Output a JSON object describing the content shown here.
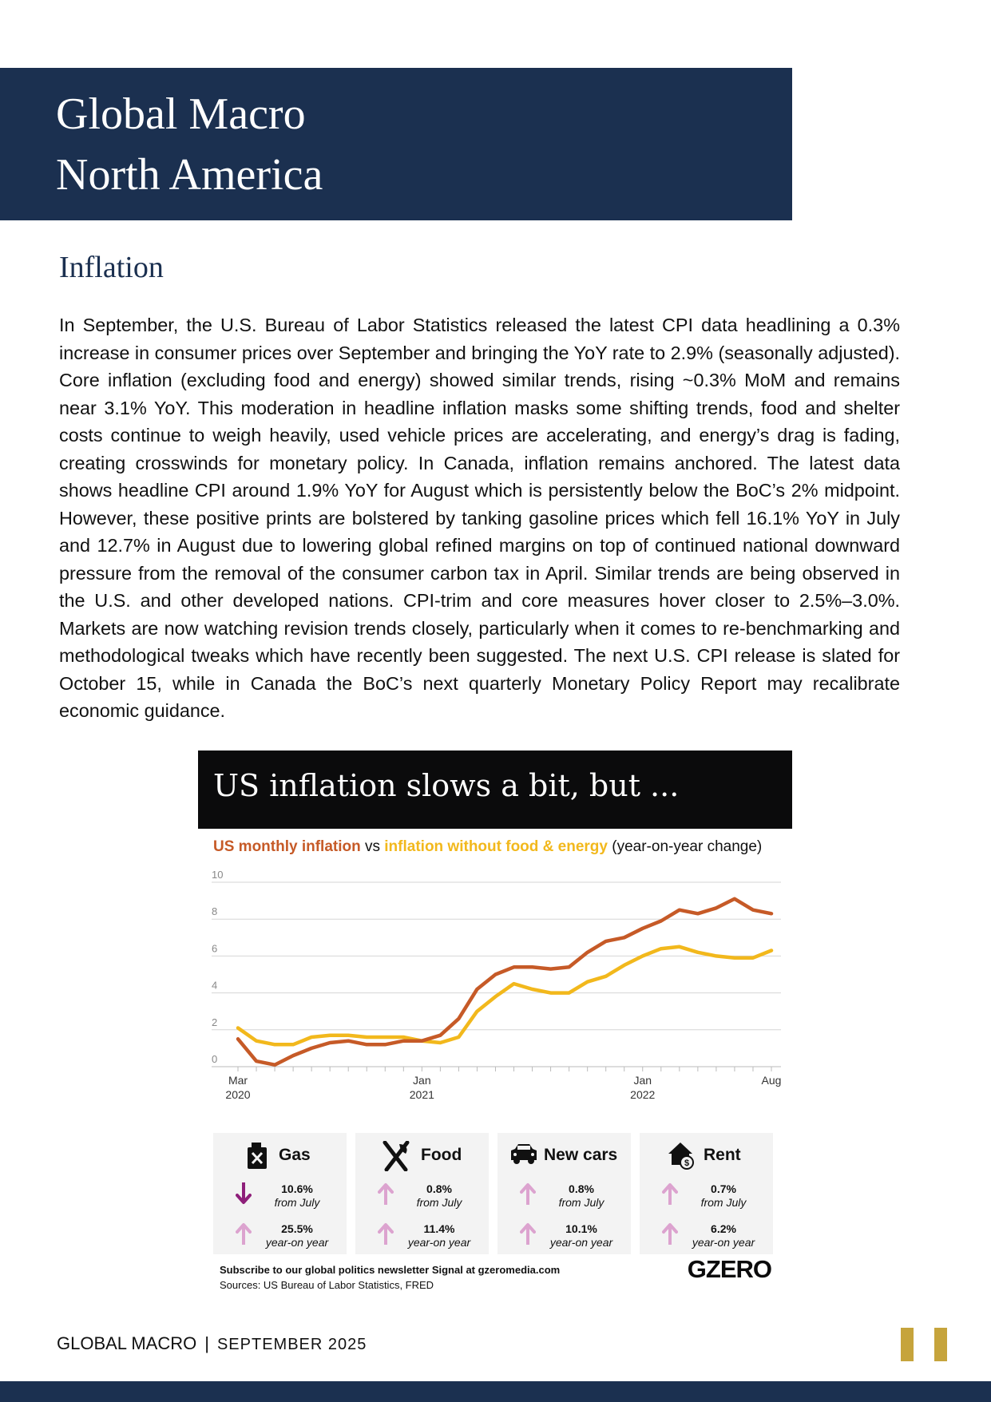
{
  "header": {
    "title_line1": "Global Macro",
    "title_line2": "North America"
  },
  "section": {
    "title": "Inflation"
  },
  "body": {
    "paragraph": "In September, the U.S. Bureau of Labor Statistics released the latest CPI data headlining a 0.3% increase in consumer prices over September and bringing the YoY rate to 2.9% (seasonally adjusted). Core inflation (excluding food and energy) showed similar trends, rising ~0.3% MoM and remains near 3.1% YoY. This moderation in headline inflation masks some shifting trends, food and shelter costs continue to weigh heavily, used vehicle prices are accelerating, and energy’s drag is fading, creating crosswinds for monetary policy. In Canada, inflation remains anchored. The latest data shows headline CPI around 1.9% YoY for August which is persistently below the BoC’s 2% midpoint. However, these positive prints are bolstered by tanking gasoline prices which fell 16.1% YoY in July and 12.7% in August due to lowering global refined margins on top of continued national downward pressure from the removal of the consumer carbon tax in April. Similar trends are being observed in the U.S. and other developed nations. CPI-trim and core measures hover closer to 2.5%–3.0%. Markets are now watching revision trends closely, particularly when it comes to re-benchmarking and methodological tweaks which have recently been suggested. The next U.S. CPI release is slated for October 15, while in Canada the BoC’s next quarterly Monetary Policy Report may recalibrate economic guidance."
  },
  "infographic": {
    "title": "US inflation slows a bit, but ...",
    "subtitle_part1": "US monthly inflation",
    "subtitle_part2": " vs ",
    "subtitle_part3": "inflation without food & energy",
    "subtitle_part4": " (year-on-year change)",
    "cards": [
      {
        "name": "Gas",
        "icon": "gas-can-icon",
        "monthly": {
          "value": "10.6%",
          "label": "from July",
          "direction": "down"
        },
        "yearly": {
          "value": "25.5%",
          "label": "year-on year",
          "direction": "up"
        }
      },
      {
        "name": "Food",
        "icon": "fork-knife-icon",
        "monthly": {
          "value": "0.8%",
          "label": "from July",
          "direction": "up"
        },
        "yearly": {
          "value": "11.4%",
          "label": "year-on year",
          "direction": "up"
        }
      },
      {
        "name": "New cars",
        "icon": "car-icon",
        "monthly": {
          "value": "0.8%",
          "label": "from July",
          "direction": "up"
        },
        "yearly": {
          "value": "10.1%",
          "label": "year-on year",
          "direction": "up"
        }
      },
      {
        "name": "Rent",
        "icon": "house-dollar-icon",
        "monthly": {
          "value": "0.7%",
          "label": "from July",
          "direction": "up"
        },
        "yearly": {
          "value": "6.2%",
          "label": "year-on year",
          "direction": "up"
        }
      }
    ],
    "footer_subscribe": "Subscribe to our global politics newsletter Signal at gzeromedia.com",
    "footer_sources": "Sources: US Bureau of Labor Statistics, FRED",
    "brand": "GZERO",
    "colors": {
      "headline": "#c65a27",
      "core": "#f2b81c",
      "down_arrow": "#8e1f7a",
      "up_arrow": "#dca3cf"
    }
  },
  "chart_data": {
    "type": "line",
    "title": "",
    "xlabel": "",
    "ylabel": "",
    "ylim": [
      0,
      10
    ],
    "y_ticks": [
      0,
      2,
      4,
      6,
      8,
      10
    ],
    "grid": true,
    "x": [
      "2020-03",
      "2020-04",
      "2020-05",
      "2020-06",
      "2020-07",
      "2020-08",
      "2020-09",
      "2020-10",
      "2020-11",
      "2020-12",
      "2021-01",
      "2021-02",
      "2021-03",
      "2021-04",
      "2021-05",
      "2021-06",
      "2021-07",
      "2021-08",
      "2021-09",
      "2021-10",
      "2021-11",
      "2021-12",
      "2022-01",
      "2022-02",
      "2022-03",
      "2022-04",
      "2022-05",
      "2022-06",
      "2022-07",
      "2022-08"
    ],
    "x_tick_labels": [
      {
        "x": "2020-03",
        "line1": "Mar",
        "line2": "2020"
      },
      {
        "x": "2021-01",
        "line1": "Jan",
        "line2": "2021"
      },
      {
        "x": "2022-01",
        "line1": "Jan",
        "line2": "2022"
      },
      {
        "x": "2022-08",
        "line1": "Aug",
        "line2": ""
      }
    ],
    "series": [
      {
        "name": "US monthly inflation",
        "color": "#c65a27",
        "values": [
          1.5,
          0.3,
          0.1,
          0.6,
          1.0,
          1.3,
          1.4,
          1.2,
          1.2,
          1.4,
          1.4,
          1.7,
          2.6,
          4.2,
          5.0,
          5.4,
          5.4,
          5.3,
          5.4,
          6.2,
          6.8,
          7.0,
          7.5,
          7.9,
          8.5,
          8.3,
          8.6,
          9.1,
          8.5,
          8.3
        ]
      },
      {
        "name": "inflation without food & energy",
        "color": "#f2b81c",
        "values": [
          2.1,
          1.4,
          1.2,
          1.2,
          1.6,
          1.7,
          1.7,
          1.6,
          1.6,
          1.6,
          1.4,
          1.3,
          1.6,
          3.0,
          3.8,
          4.5,
          4.2,
          4.0,
          4.0,
          4.6,
          4.9,
          5.5,
          6.0,
          6.4,
          6.5,
          6.2,
          6.0,
          5.9,
          5.9,
          6.3
        ]
      }
    ]
  },
  "footer": {
    "left": "GLOBAL MACRO",
    "separator": "|",
    "date": "SEPTEMBER 2025"
  },
  "page_number_icon": "pause-bars-icon",
  "page_colors": {
    "navy": "#1b3050",
    "gold": "#c6a43c"
  }
}
